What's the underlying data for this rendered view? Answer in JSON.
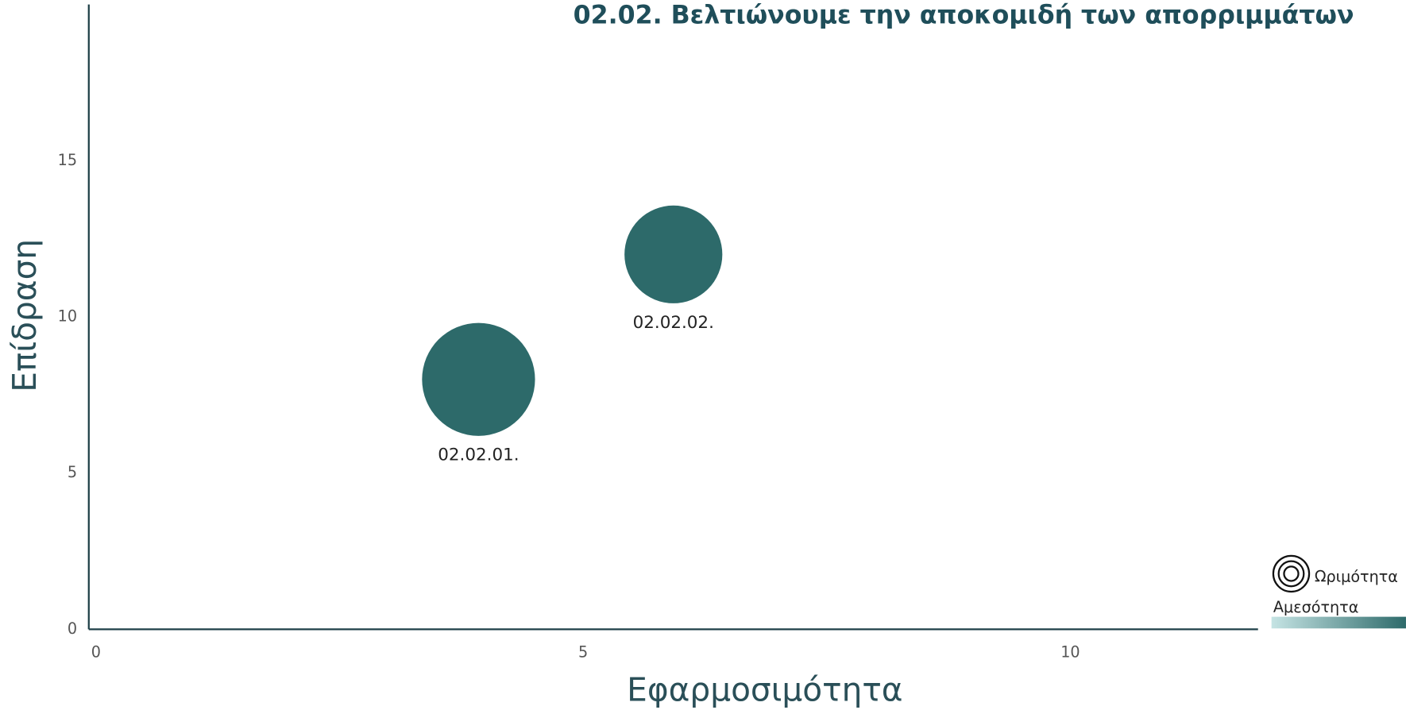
{
  "chart_data": {
    "type": "bubble",
    "title": "02.02. Βελτιώνουμε την αποκομιδή των απορριμμάτων",
    "x_label": "Εφαρμοσιμότητα",
    "y_label": "Επίδραση",
    "x": [
      4,
      6
    ],
    "values": [
      8,
      12
    ],
    "sizes": [
      4,
      3
    ],
    "labels": [
      "02.02.01.",
      "02.02.02."
    ],
    "color": "#2d6a6a",
    "xlim": [
      0,
      12
    ],
    "xticks": [
      0,
      5,
      10
    ],
    "ylim": [
      0,
      20
    ],
    "yticks": [
      0,
      5,
      10,
      15
    ],
    "size_legend": "Ωριμότητα",
    "color_legend": "Αμεσότητα",
    "color_scale": [
      "#c5e4e4",
      "#2d6a6a"
    ]
  }
}
